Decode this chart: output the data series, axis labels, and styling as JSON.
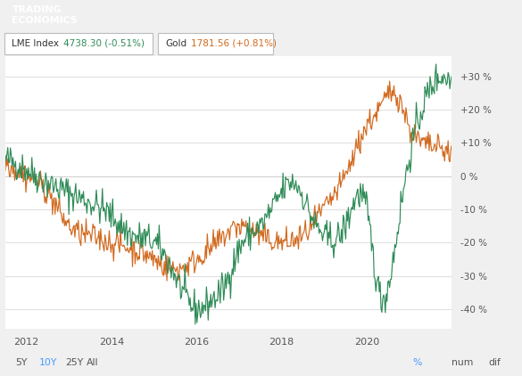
{
  "header_bg": "#333333",
  "header_red_bg": "#cc0000",
  "lme_color": "#2e8b57",
  "gold_color": "#d2691e",
  "grid_color": "#dddddd",
  "y_ticks": [
    -40,
    -30,
    -20,
    -10,
    0,
    10,
    20,
    30
  ],
  "y_tick_labels": [
    "-40 %",
    "-30 %",
    "-20 %",
    "-10 %",
    "0 %",
    "+10 %",
    "+20 %",
    "+30 %"
  ],
  "ylim": [
    -46,
    36
  ],
  "x_years": [
    2012,
    2014,
    2016,
    2018,
    2020
  ],
  "xlim": [
    2011.5,
    2022.0
  ],
  "footer_active_color": "#4499ff",
  "footer_inactive_color": "#555555",
  "lme_legend_value": "4738.30 (-0.51%)",
  "gold_legend_value": "1781.56 (+0.81%)",
  "lme_control_t": [
    2011.5,
    2012.0,
    2012.5,
    2013.0,
    2013.5,
    2014.0,
    2014.5,
    2015.0,
    2015.5,
    2016.0,
    2016.3,
    2016.7,
    2017.0,
    2017.5,
    2018.0,
    2018.3,
    2018.7,
    2019.0,
    2019.5,
    2020.0,
    2020.3,
    2020.8,
    2021.0,
    2021.3,
    2021.8,
    2022.0
  ],
  "lme_control_v": [
    5,
    2,
    -2,
    -5,
    -8,
    -12,
    -18,
    -20,
    -30,
    -40,
    -38,
    -32,
    -22,
    -15,
    -5,
    -2,
    -12,
    -18,
    -15,
    -10,
    -35,
    -10,
    5,
    20,
    30,
    28
  ],
  "gold_control_t": [
    2011.5,
    2012.0,
    2012.5,
    2013.0,
    2013.5,
    2014.0,
    2014.5,
    2015.0,
    2015.5,
    2016.0,
    2016.5,
    2017.0,
    2017.5,
    2018.0,
    2018.5,
    2019.0,
    2019.5,
    2020.0,
    2020.3,
    2020.7,
    2021.0,
    2021.3,
    2021.8,
    2022.0
  ],
  "gold_control_v": [
    5,
    0,
    -5,
    -15,
    -18,
    -20,
    -22,
    -25,
    -28,
    -25,
    -20,
    -15,
    -18,
    -20,
    -18,
    -10,
    0,
    15,
    20,
    25,
    15,
    10,
    8,
    7
  ]
}
